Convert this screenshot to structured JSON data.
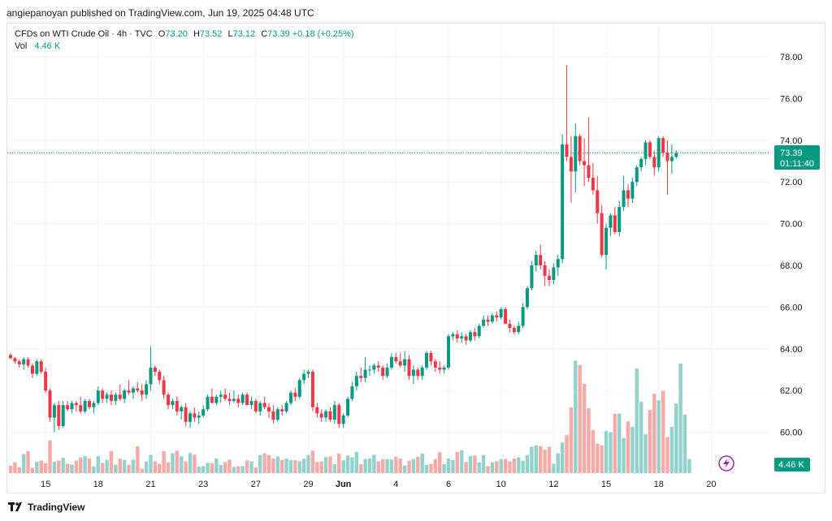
{
  "publisher_line": "angiepanoyan published on TradingView.com, Jun 19, 2025 04:48 UTC",
  "legend": {
    "symbol": "CFDs on WTI Crude Oil · 4h · TVC",
    "open_label": "O",
    "open": "73.20",
    "high_label": "H",
    "high": "73.52",
    "low_label": "L",
    "low": "73.12",
    "close_label": "C",
    "close": "73.39",
    "change": "+0.18 (+0.25%)",
    "vol_label": "Vol",
    "vol_value": "4.46 K"
  },
  "price_tag": {
    "price": "73.39",
    "countdown": "01:11:40"
  },
  "vol_tag": "4.46 K",
  "footer": {
    "brand": "TradingView"
  },
  "colors": {
    "up": "#089981",
    "down": "#f23645",
    "up_vol": "#92d2cc",
    "down_vol": "#f7a9a7",
    "grid": "#f0f3fa",
    "tag": "#089981"
  },
  "chart_data": {
    "type": "candlestick",
    "instrument": "CFDs on WTI Crude Oil",
    "timeframe": "4h",
    "ylim": [
      58.0,
      79.0
    ],
    "yticks": [
      "78.00",
      "76.00",
      "74.00",
      "72.00",
      "70.00",
      "68.00",
      "66.00",
      "64.00",
      "62.00",
      "60.00"
    ],
    "xticks": [
      {
        "label": "15",
        "i": 8
      },
      {
        "label": "18",
        "i": 20
      },
      {
        "label": "21",
        "i": 32
      },
      {
        "label": "23",
        "i": 44
      },
      {
        "label": "27",
        "i": 56
      },
      {
        "label": "29",
        "i": 68
      },
      {
        "label": "Jun",
        "i": 76
      },
      {
        "label": "4",
        "i": 88
      },
      {
        "label": "6",
        "i": 100
      },
      {
        "label": "10",
        "i": 112
      },
      {
        "label": "12",
        "i": 124
      },
      {
        "label": "15",
        "i": 136
      },
      {
        "label": "18",
        "i": 148
      },
      {
        "label": "20",
        "i": 160
      }
    ],
    "current_price": 73.39,
    "candles": [
      [
        63.7,
        63.8,
        63.5,
        63.55
      ],
      [
        63.55,
        63.6,
        63.3,
        63.4
      ],
      [
        63.4,
        63.5,
        63.1,
        63.25
      ],
      [
        63.25,
        63.6,
        63.0,
        63.5
      ],
      [
        63.5,
        63.6,
        63.1,
        63.2
      ],
      [
        63.2,
        63.3,
        62.6,
        62.8
      ],
      [
        62.8,
        63.5,
        62.7,
        63.4
      ],
      [
        63.4,
        63.5,
        62.8,
        62.9
      ],
      [
        62.9,
        63.1,
        61.9,
        62.0
      ],
      [
        62.0,
        62.1,
        60.5,
        60.7
      ],
      [
        60.7,
        61.4,
        60.0,
        61.3
      ],
      [
        61.3,
        61.5,
        60.1,
        60.3
      ],
      [
        60.3,
        61.5,
        60.2,
        61.3
      ],
      [
        61.3,
        61.5,
        61.0,
        61.1
      ],
      [
        61.1,
        61.5,
        60.9,
        61.4
      ],
      [
        61.4,
        61.5,
        61.0,
        61.3
      ],
      [
        61.3,
        61.7,
        60.9,
        61.0
      ],
      [
        61.0,
        61.6,
        60.9,
        61.5
      ],
      [
        61.5,
        61.6,
        61.1,
        61.2
      ],
      [
        61.2,
        61.5,
        60.9,
        61.4
      ],
      [
        61.4,
        62.2,
        61.3,
        62.0
      ],
      [
        62.0,
        62.1,
        61.4,
        61.6
      ],
      [
        61.6,
        61.9,
        61.4,
        61.8
      ],
      [
        61.8,
        62.0,
        61.3,
        61.5
      ],
      [
        61.5,
        61.9,
        61.3,
        61.8
      ],
      [
        61.8,
        62.3,
        61.5,
        61.6
      ],
      [
        61.6,
        62.1,
        61.4,
        62.0
      ],
      [
        62.0,
        62.5,
        61.8,
        61.9
      ],
      [
        61.9,
        62.2,
        61.6,
        62.1
      ],
      [
        62.1,
        62.4,
        61.9,
        62.0
      ],
      [
        62.0,
        62.3,
        61.5,
        61.8
      ],
      [
        61.8,
        62.5,
        61.6,
        62.3
      ],
      [
        62.3,
        64.1,
        62.0,
        63.1
      ],
      [
        63.1,
        63.2,
        62.7,
        62.9
      ],
      [
        62.9,
        63.0,
        62.3,
        62.5
      ],
      [
        62.5,
        62.7,
        61.6,
        61.8
      ],
      [
        61.8,
        61.9,
        61.1,
        61.3
      ],
      [
        61.3,
        61.6,
        61.1,
        61.5
      ],
      [
        61.5,
        61.7,
        60.8,
        61.0
      ],
      [
        61.0,
        61.3,
        60.6,
        61.2
      ],
      [
        61.2,
        61.4,
        60.3,
        60.5
      ],
      [
        60.5,
        61.0,
        60.2,
        60.9
      ],
      [
        60.9,
        61.2,
        60.5,
        60.7
      ],
      [
        60.7,
        61.0,
        60.4,
        60.8
      ],
      [
        60.8,
        61.3,
        60.7,
        61.1
      ],
      [
        61.1,
        61.8,
        61.0,
        61.7
      ],
      [
        61.7,
        62.1,
        61.5,
        61.4
      ],
      [
        61.4,
        61.8,
        61.3,
        61.7
      ],
      [
        61.7,
        62.0,
        61.4,
        61.8
      ],
      [
        61.8,
        62.1,
        61.5,
        61.6
      ],
      [
        61.6,
        61.9,
        61.3,
        61.5
      ],
      [
        61.5,
        62.0,
        61.4,
        61.6
      ],
      [
        61.6,
        61.8,
        61.2,
        61.4
      ],
      [
        61.4,
        61.9,
        61.3,
        61.8
      ],
      [
        61.8,
        61.9,
        61.3,
        61.3
      ],
      [
        61.3,
        61.7,
        61.1,
        61.5
      ],
      [
        61.5,
        61.6,
        60.9,
        61.0
      ],
      [
        61.0,
        61.5,
        60.8,
        61.4
      ],
      [
        61.4,
        61.7,
        61.1,
        61.2
      ],
      [
        61.2,
        61.4,
        60.7,
        61.0
      ],
      [
        61.0,
        61.3,
        60.4,
        60.6
      ],
      [
        60.6,
        61.2,
        60.5,
        61.1
      ],
      [
        61.1,
        61.3,
        60.8,
        61.0
      ],
      [
        61.0,
        61.5,
        60.9,
        61.4
      ],
      [
        61.4,
        62.0,
        61.3,
        61.9
      ],
      [
        61.9,
        62.1,
        61.5,
        61.7
      ],
      [
        61.7,
        62.6,
        61.6,
        62.5
      ],
      [
        62.5,
        63.0,
        62.3,
        62.8
      ],
      [
        62.8,
        63.0,
        62.6,
        62.9
      ],
      [
        62.9,
        63.0,
        61.0,
        61.2
      ],
      [
        61.2,
        61.4,
        60.7,
        60.9
      ],
      [
        60.9,
        61.1,
        60.5,
        60.7
      ],
      [
        60.7,
        61.1,
        60.5,
        61.0
      ],
      [
        61.0,
        61.2,
        60.5,
        60.6
      ],
      [
        60.6,
        61.5,
        60.4,
        61.3
      ],
      [
        61.3,
        61.4,
        60.2,
        60.4
      ],
      [
        60.4,
        60.9,
        60.2,
        60.8
      ],
      [
        60.8,
        61.7,
        60.7,
        61.6
      ],
      [
        61.6,
        62.4,
        61.5,
        62.2
      ],
      [
        62.2,
        62.9,
        62.0,
        62.7
      ],
      [
        62.7,
        63.1,
        62.4,
        62.6
      ],
      [
        62.6,
        63.6,
        62.4,
        63.0
      ],
      [
        63.0,
        63.2,
        62.7,
        63.0
      ],
      [
        63.0,
        63.3,
        62.8,
        63.2
      ],
      [
        63.2,
        63.4,
        62.9,
        63.1
      ],
      [
        63.1,
        63.2,
        62.5,
        62.7
      ],
      [
        62.7,
        63.3,
        62.6,
        63.1
      ],
      [
        63.1,
        63.8,
        63.0,
        63.6
      ],
      [
        63.6,
        63.8,
        63.3,
        63.4
      ],
      [
        63.4,
        63.8,
        63.1,
        63.2
      ],
      [
        63.2,
        63.9,
        62.9,
        63.5
      ],
      [
        63.5,
        63.7,
        62.5,
        62.7
      ],
      [
        62.7,
        63.2,
        62.3,
        63.0
      ],
      [
        63.0,
        63.1,
        62.5,
        62.7
      ],
      [
        62.7,
        63.2,
        62.5,
        63.1
      ],
      [
        63.1,
        63.9,
        63.0,
        63.8
      ],
      [
        63.8,
        63.9,
        63.2,
        63.4
      ],
      [
        63.4,
        63.5,
        62.9,
        63.1
      ],
      [
        63.1,
        63.4,
        62.8,
        63.0
      ],
      [
        63.0,
        63.2,
        62.8,
        63.1
      ],
      [
        63.1,
        64.7,
        63.0,
        64.6
      ],
      [
        64.6,
        64.8,
        64.4,
        64.7
      ],
      [
        64.7,
        64.9,
        64.3,
        64.5
      ],
      [
        64.5,
        64.8,
        64.3,
        64.6
      ],
      [
        64.6,
        64.7,
        64.2,
        64.4
      ],
      [
        64.4,
        64.9,
        64.3,
        64.8
      ],
      [
        64.8,
        65.0,
        64.4,
        64.6
      ],
      [
        64.6,
        65.2,
        64.5,
        65.1
      ],
      [
        65.1,
        65.6,
        65.0,
        65.4
      ],
      [
        65.4,
        65.6,
        65.1,
        65.3
      ],
      [
        65.3,
        65.7,
        65.2,
        65.6
      ],
      [
        65.6,
        65.8,
        65.3,
        65.5
      ],
      [
        65.5,
        66.0,
        65.4,
        65.9
      ],
      [
        65.9,
        66.0,
        65.4,
        65.2
      ],
      [
        65.2,
        65.4,
        64.8,
        65.0
      ],
      [
        65.0,
        65.1,
        64.7,
        64.8
      ],
      [
        64.8,
        65.3,
        64.7,
        65.1
      ],
      [
        65.1,
        66.2,
        65.0,
        66.0
      ],
      [
        66.0,
        67.0,
        65.9,
        66.9
      ],
      [
        66.9,
        68.2,
        66.8,
        68.0
      ],
      [
        68.0,
        68.7,
        67.7,
        68.5
      ],
      [
        68.5,
        69.0,
        67.8,
        68.0
      ],
      [
        68.0,
        68.2,
        67.0,
        67.5
      ],
      [
        67.5,
        67.8,
        67.0,
        67.3
      ],
      [
        67.3,
        68.1,
        67.1,
        67.9
      ],
      [
        67.9,
        68.5,
        67.5,
        68.3
      ],
      [
        68.3,
        74.3,
        68.1,
        73.8
      ],
      [
        73.8,
        77.6,
        73.0,
        73.2
      ],
      [
        73.2,
        74.2,
        71.0,
        72.5
      ],
      [
        72.5,
        74.8,
        71.5,
        74.2
      ],
      [
        74.2,
        74.3,
        72.8,
        73.0
      ],
      [
        73.0,
        74.1,
        71.8,
        72.8
      ],
      [
        72.8,
        75.1,
        72.0,
        72.2
      ],
      [
        72.2,
        72.9,
        71.4,
        71.6
      ],
      [
        71.6,
        72.3,
        70.0,
        70.5
      ],
      [
        70.5,
        70.9,
        68.4,
        68.5
      ],
      [
        68.5,
        70.0,
        67.8,
        69.8
      ],
      [
        69.8,
        70.5,
        69.4,
        70.4
      ],
      [
        70.4,
        70.8,
        69.5,
        69.6
      ],
      [
        69.6,
        71.1,
        69.4,
        70.8
      ],
      [
        70.8,
        72.3,
        70.6,
        71.6
      ],
      [
        71.6,
        71.9,
        70.8,
        71.2
      ],
      [
        71.2,
        72.2,
        71.0,
        72.0
      ],
      [
        72.0,
        72.8,
        71.8,
        72.7
      ],
      [
        72.7,
        73.2,
        72.5,
        73.1
      ],
      [
        73.1,
        74.0,
        72.8,
        73.9
      ],
      [
        73.9,
        74.0,
        73.1,
        73.2
      ],
      [
        73.2,
        73.5,
        72.3,
        72.7
      ],
      [
        72.7,
        74.2,
        72.5,
        74.1
      ],
      [
        74.1,
        74.2,
        73.2,
        73.4
      ],
      [
        73.4,
        74.0,
        71.4,
        73.0
      ],
      [
        73.0,
        73.8,
        72.4,
        73.2
      ],
      [
        73.2,
        73.52,
        73.12,
        73.39
      ]
    ],
    "volume": [
      0.25,
      0.37,
      0.2,
      0.65,
      0.75,
      0.18,
      0.39,
      0.43,
      0.34,
      1.12,
      0.39,
      0.43,
      0.52,
      0.32,
      0.3,
      0.43,
      0.53,
      0.58,
      0.5,
      0.23,
      0.58,
      0.35,
      0.45,
      0.75,
      0.29,
      0.49,
      0.45,
      0.29,
      0.46,
      0.92,
      0.15,
      0.4,
      0.62,
      0.4,
      0.32,
      0.75,
      0.37,
      0.68,
      0.77,
      0.58,
      0.4,
      0.69,
      0.63,
      0.22,
      0.24,
      0.35,
      0.34,
      0.5,
      0.28,
      0.38,
      0.46,
      0.21,
      0.23,
      0.24,
      0.43,
      0.4,
      0.2,
      0.62,
      0.68,
      0.62,
      0.5,
      0.57,
      0.45,
      0.5,
      0.45,
      0.44,
      0.41,
      0.49,
      0.62,
      0.77,
      0.38,
      0.4,
      0.55,
      0.57,
      0.31,
      0.67,
      0.44,
      0.6,
      0.54,
      0.72,
      0.3,
      0.48,
      0.5,
      0.63,
      0.4,
      0.48,
      0.48,
      0.47,
      0.56,
      0.49,
      0.26,
      0.42,
      0.48,
      0.56,
      0.67,
      0.28,
      0.32,
      0.48,
      0.72,
      0.31,
      0.5,
      0.45,
      0.72,
      0.78,
      0.38,
      0.58,
      0.6,
      0.37,
      0.62,
      0.24,
      0.36,
      0.41,
      0.48,
      0.48,
      0.4,
      0.5,
      0.54,
      0.42,
      0.62,
      0.9,
      0.95,
      0.92,
      0.8,
      0.9,
      0.32,
      0.68,
      1.05,
      1.3,
      2.25,
      3.85,
      3.7,
      3.06,
      2.22,
      1.47,
      1.01,
      0.95,
      1.44,
      1.4,
      2.03,
      2.04,
      1.2,
      1.77,
      1.58,
      3.59,
      2.44,
      1.33,
      2.16,
      2.72,
      2.49,
      2.81,
      1.23,
      1.58,
      2.38,
      3.75,
      2.0,
      0.48
    ]
  }
}
